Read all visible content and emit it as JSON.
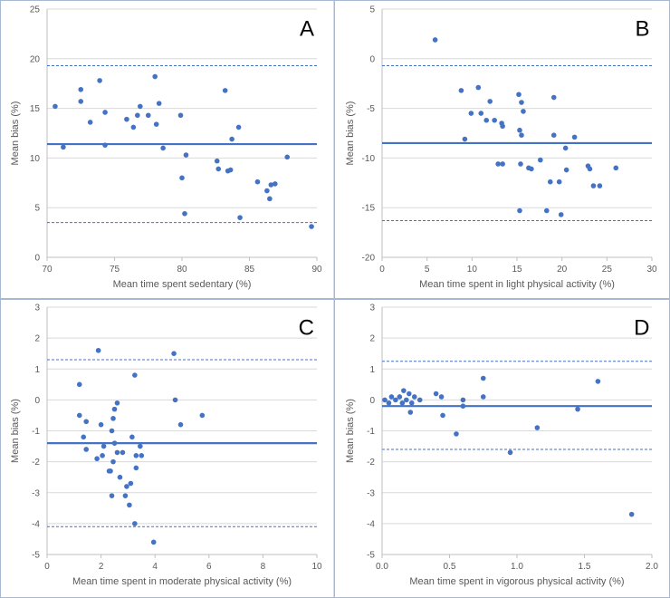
{
  "chart_data": [
    {
      "type": "scatter",
      "panel_label": "A",
      "xlabel": "Mean time spent sedentary (%)",
      "ylabel": "Mean bias (%)",
      "xlim": [
        70,
        90
      ],
      "ylim": [
        0,
        25
      ],
      "xticks": [
        70,
        75,
        80,
        85,
        90
      ],
      "yticks": [
        0,
        5,
        10,
        15,
        20,
        25
      ],
      "mean_bias": 11.4,
      "loa_upper": 19.3,
      "loa_lower": 3.5,
      "points": [
        {
          "x": 70.6,
          "y": 15.2
        },
        {
          "x": 71.2,
          "y": 11.1
        },
        {
          "x": 72.5,
          "y": 15.7
        },
        {
          "x": 72.5,
          "y": 16.9
        },
        {
          "x": 73.2,
          "y": 13.6
        },
        {
          "x": 73.9,
          "y": 17.8
        },
        {
          "x": 74.3,
          "y": 14.6
        },
        {
          "x": 74.3,
          "y": 11.3
        },
        {
          "x": 75.9,
          "y": 13.9
        },
        {
          "x": 76.4,
          "y": 13.1
        },
        {
          "x": 76.7,
          "y": 14.3
        },
        {
          "x": 76.9,
          "y": 15.2
        },
        {
          "x": 77.5,
          "y": 14.3
        },
        {
          "x": 78.0,
          "y": 18.2
        },
        {
          "x": 78.1,
          "y": 13.4
        },
        {
          "x": 78.3,
          "y": 15.5
        },
        {
          "x": 78.6,
          "y": 11.0
        },
        {
          "x": 79.9,
          "y": 14.3
        },
        {
          "x": 80.0,
          "y": 8.0
        },
        {
          "x": 80.2,
          "y": 4.4
        },
        {
          "x": 80.3,
          "y": 10.3
        },
        {
          "x": 82.6,
          "y": 9.7
        },
        {
          "x": 82.7,
          "y": 8.9
        },
        {
          "x": 83.2,
          "y": 16.8
        },
        {
          "x": 83.4,
          "y": 8.7
        },
        {
          "x": 83.6,
          "y": 8.8
        },
        {
          "x": 83.7,
          "y": 11.9
        },
        {
          "x": 84.2,
          "y": 13.1
        },
        {
          "x": 84.3,
          "y": 4.0
        },
        {
          "x": 85.6,
          "y": 7.6
        },
        {
          "x": 86.3,
          "y": 6.7
        },
        {
          "x": 86.5,
          "y": 5.9
        },
        {
          "x": 86.6,
          "y": 7.3
        },
        {
          "x": 86.9,
          "y": 7.4
        },
        {
          "x": 87.8,
          "y": 10.1
        },
        {
          "x": 89.6,
          "y": 3.1
        }
      ]
    },
    {
      "type": "scatter",
      "panel_label": "B",
      "xlabel": "Mean time spent in light physical activity (%)",
      "ylabel": "Mean bias (%)",
      "xlim": [
        0,
        30
      ],
      "ylim": [
        -20,
        5
      ],
      "xticks": [
        0,
        5,
        10,
        15,
        20,
        25,
        30
      ],
      "yticks": [
        -20,
        -15,
        -10,
        -5,
        0,
        5
      ],
      "mean_bias": -8.5,
      "loa_upper": -0.7,
      "loa_lower": -16.3,
      "points": [
        {
          "x": 5.9,
          "y": 1.9
        },
        {
          "x": 8.8,
          "y": -3.2
        },
        {
          "x": 9.2,
          "y": -8.1
        },
        {
          "x": 9.9,
          "y": -5.5
        },
        {
          "x": 10.7,
          "y": -2.9
        },
        {
          "x": 11.0,
          "y": -5.5
        },
        {
          "x": 11.6,
          "y": -6.2
        },
        {
          "x": 12.0,
          "y": -4.3
        },
        {
          "x": 12.5,
          "y": -6.2
        },
        {
          "x": 12.9,
          "y": -10.6
        },
        {
          "x": 13.3,
          "y": -6.5
        },
        {
          "x": 13.4,
          "y": -10.6
        },
        {
          "x": 13.4,
          "y": -6.8
        },
        {
          "x": 15.2,
          "y": -3.6
        },
        {
          "x": 15.3,
          "y": -7.2
        },
        {
          "x": 15.3,
          "y": -15.3
        },
        {
          "x": 15.4,
          "y": -10.6
        },
        {
          "x": 15.5,
          "y": -4.4
        },
        {
          "x": 15.5,
          "y": -7.7
        },
        {
          "x": 15.7,
          "y": -5.3
        },
        {
          "x": 16.3,
          "y": -11.0
        },
        {
          "x": 16.6,
          "y": -11.1
        },
        {
          "x": 17.6,
          "y": -10.2
        },
        {
          "x": 18.3,
          "y": -15.3
        },
        {
          "x": 18.7,
          "y": -12.4
        },
        {
          "x": 19.1,
          "y": -3.9
        },
        {
          "x": 19.1,
          "y": -7.7
        },
        {
          "x": 19.7,
          "y": -12.4
        },
        {
          "x": 19.9,
          "y": -15.7
        },
        {
          "x": 20.4,
          "y": -9.0
        },
        {
          "x": 20.5,
          "y": -11.2
        },
        {
          "x": 21.4,
          "y": -7.9
        },
        {
          "x": 22.9,
          "y": -10.8
        },
        {
          "x": 23.1,
          "y": -11.1
        },
        {
          "x": 23.5,
          "y": -12.8
        },
        {
          "x": 24.2,
          "y": -12.8
        },
        {
          "x": 26.0,
          "y": -11.0
        }
      ]
    },
    {
      "type": "scatter",
      "panel_label": "C",
      "xlabel": "Mean time spent in moderate physical activity (%)",
      "ylabel": "Mean bias (%)",
      "xlim": [
        0,
        10
      ],
      "ylim": [
        -5,
        3
      ],
      "xticks": [
        0,
        2,
        4,
        6,
        8,
        10
      ],
      "yticks": [
        -5,
        -4,
        -3,
        -2,
        -1,
        0,
        1,
        2,
        3
      ],
      "mean_bias": -1.4,
      "loa_upper": 1.3,
      "loa_lower": -4.1,
      "points": [
        {
          "x": 1.2,
          "y": 0.5
        },
        {
          "x": 1.2,
          "y": -0.5
        },
        {
          "x": 1.35,
          "y": -1.2
        },
        {
          "x": 1.45,
          "y": -0.7
        },
        {
          "x": 1.45,
          "y": -1.6
        },
        {
          "x": 1.85,
          "y": -1.9
        },
        {
          "x": 1.9,
          "y": 1.6
        },
        {
          "x": 2.0,
          "y": -0.8
        },
        {
          "x": 2.05,
          "y": -1.8
        },
        {
          "x": 2.1,
          "y": -1.5
        },
        {
          "x": 2.3,
          "y": -2.3
        },
        {
          "x": 2.35,
          "y": -2.3
        },
        {
          "x": 2.4,
          "y": -3.1
        },
        {
          "x": 2.4,
          "y": -1.0
        },
        {
          "x": 2.45,
          "y": -0.6
        },
        {
          "x": 2.45,
          "y": -2.0
        },
        {
          "x": 2.5,
          "y": -1.4
        },
        {
          "x": 2.5,
          "y": -0.3
        },
        {
          "x": 2.6,
          "y": -0.1
        },
        {
          "x": 2.6,
          "y": -1.7
        },
        {
          "x": 2.7,
          "y": -2.5
        },
        {
          "x": 2.8,
          "y": -1.7
        },
        {
          "x": 2.9,
          "y": -3.1
        },
        {
          "x": 2.95,
          "y": -2.8
        },
        {
          "x": 3.05,
          "y": -3.4
        },
        {
          "x": 3.1,
          "y": -2.7
        },
        {
          "x": 3.15,
          "y": -1.2
        },
        {
          "x": 3.25,
          "y": 0.8
        },
        {
          "x": 3.25,
          "y": -4.0
        },
        {
          "x": 3.3,
          "y": -1.8
        },
        {
          "x": 3.3,
          "y": -2.2
        },
        {
          "x": 3.45,
          "y": -1.5
        },
        {
          "x": 3.5,
          "y": -1.8
        },
        {
          "x": 3.95,
          "y": -4.6
        },
        {
          "x": 4.7,
          "y": 1.5
        },
        {
          "x": 4.75,
          "y": 0.0
        },
        {
          "x": 4.95,
          "y": -0.8
        },
        {
          "x": 5.75,
          "y": -0.5
        }
      ]
    },
    {
      "type": "scatter",
      "panel_label": "D",
      "xlabel": "Mean time spent in vigorous physical activity (%)",
      "ylabel": "Mean bias (%)",
      "xlim": [
        0,
        2.0
      ],
      "ylim": [
        -5,
        3
      ],
      "xticks": [
        0,
        0.5,
        1.0,
        1.5,
        2.0
      ],
      "yticks": [
        -5,
        -4,
        -3,
        -2,
        -1,
        0,
        1,
        2,
        3
      ],
      "xtick_labels": [
        "0.0",
        "0.5",
        "1.0",
        "1.5",
        "2.0"
      ],
      "mean_bias": -0.2,
      "loa_upper": 1.25,
      "loa_lower": -1.6,
      "points": [
        {
          "x": 0.02,
          "y": 0.0
        },
        {
          "x": 0.05,
          "y": -0.1
        },
        {
          "x": 0.07,
          "y": 0.1
        },
        {
          "x": 0.1,
          "y": 0.0
        },
        {
          "x": 0.13,
          "y": 0.1
        },
        {
          "x": 0.15,
          "y": -0.1
        },
        {
          "x": 0.16,
          "y": 0.3
        },
        {
          "x": 0.18,
          "y": 0.0
        },
        {
          "x": 0.2,
          "y": 0.2
        },
        {
          "x": 0.21,
          "y": -0.4
        },
        {
          "x": 0.22,
          "y": -0.1
        },
        {
          "x": 0.24,
          "y": 0.1
        },
        {
          "x": 0.28,
          "y": 0.0
        },
        {
          "x": 0.4,
          "y": 0.2
        },
        {
          "x": 0.44,
          "y": 0.1
        },
        {
          "x": 0.45,
          "y": -0.5
        },
        {
          "x": 0.55,
          "y": -1.1
        },
        {
          "x": 0.6,
          "y": -0.2
        },
        {
          "x": 0.6,
          "y": 0.0
        },
        {
          "x": 0.75,
          "y": 0.7
        },
        {
          "x": 0.75,
          "y": 0.1
        },
        {
          "x": 0.95,
          "y": -1.7
        },
        {
          "x": 1.15,
          "y": -0.9
        },
        {
          "x": 1.45,
          "y": -0.3
        },
        {
          "x": 1.6,
          "y": 0.6
        },
        {
          "x": 1.85,
          "y": -3.7
        }
      ]
    }
  ],
  "colors": {
    "point": "#4472c4",
    "line": "#4472c4",
    "grid": "#d9d9d9",
    "axis": "#bfbfbf",
    "text": "#595959",
    "panel_border": "#a6b8d4"
  }
}
